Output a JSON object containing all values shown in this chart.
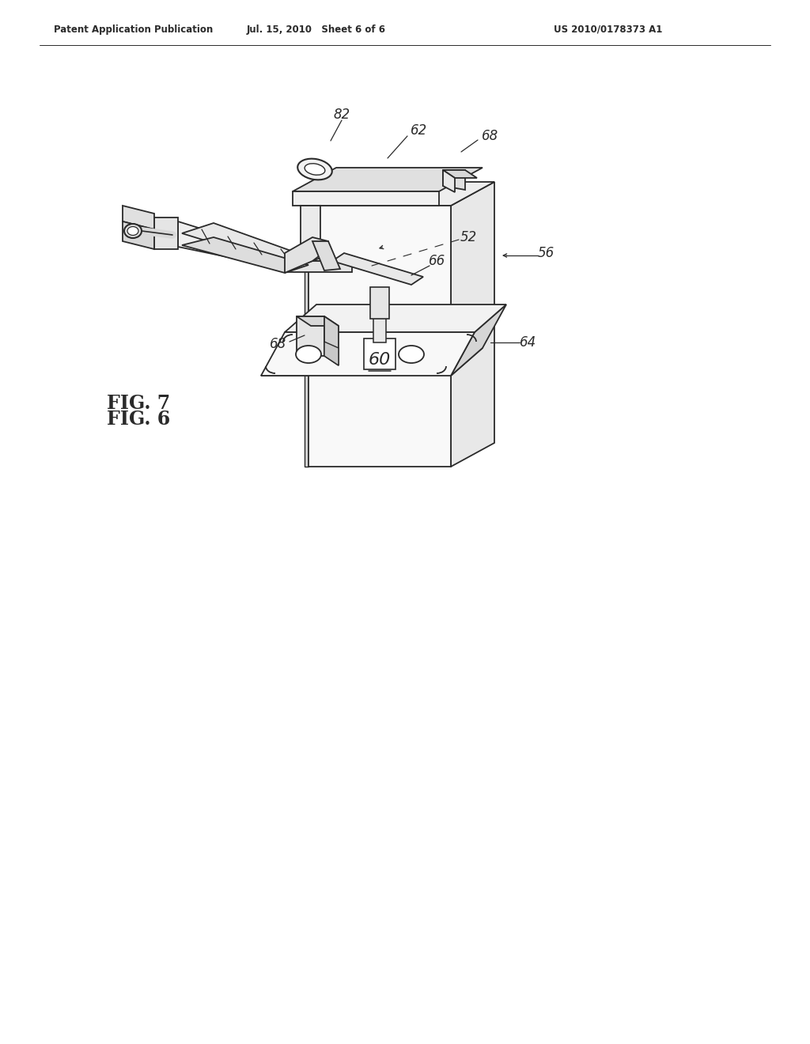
{
  "bg_color": "#ffffff",
  "line_color": "#2a2a2a",
  "header_left": "Patent Application Publication",
  "header_mid": "Jul. 15, 2010   Sheet 6 of 6",
  "header_right": "US 2010/0178373 A1",
  "fig6_label": "FIG. 6",
  "fig7_label": "FIG. 7"
}
